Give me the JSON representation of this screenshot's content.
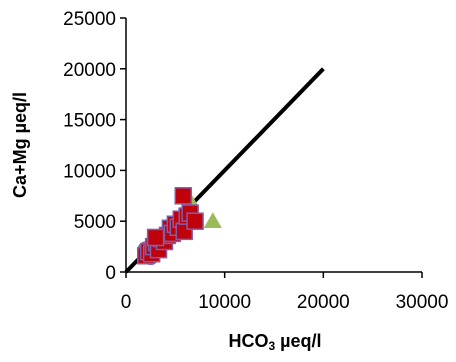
{
  "chart_data": {
    "type": "scatter",
    "title": "",
    "xlabel": "HCO3 µeq/l",
    "ylabel": "Ca+Mg µeq/l",
    "xlabel_parts": {
      "main": "HCO",
      "sub": "3",
      "tail": " µeq/l"
    },
    "xlim": [
      0,
      30000
    ],
    "ylim": [
      0,
      25000
    ],
    "xticks": [
      0,
      10000,
      20000,
      30000
    ],
    "yticks": [
      0,
      5000,
      10000,
      15000,
      20000,
      25000
    ],
    "grid": false,
    "legend": "none",
    "reference_line": {
      "x": [
        0,
        20000
      ],
      "y": [
        0,
        20000
      ],
      "color": "#000000"
    },
    "series": [
      {
        "marker": "circle",
        "color": "#c9722b",
        "points": [
          [
            2200,
            1800
          ],
          [
            2600,
            2100
          ],
          [
            3000,
            2600
          ],
          [
            3400,
            3000
          ],
          [
            2000,
            2200
          ],
          [
            3900,
            3500
          ],
          [
            4300,
            3900
          ],
          [
            2500,
            1500
          ]
        ]
      },
      {
        "marker": "triangle",
        "color": "#9bbb59",
        "points": [
          [
            8800,
            5000
          ],
          [
            6500,
            7000
          ],
          [
            5200,
            4600
          ],
          [
            4600,
            3800
          ]
        ]
      },
      {
        "marker": "square",
        "color": "#c0000b",
        "edge": "#7f5fa8",
        "points": [
          [
            2000,
            1600
          ],
          [
            2300,
            2000
          ],
          [
            2600,
            1800
          ],
          [
            2800,
            2500
          ],
          [
            3100,
            2900
          ],
          [
            3300,
            2200
          ],
          [
            3600,
            3300
          ],
          [
            3900,
            3000
          ],
          [
            4200,
            3600
          ],
          [
            4500,
            4300
          ],
          [
            4700,
            3800
          ],
          [
            5000,
            4700
          ],
          [
            5300,
            4400
          ],
          [
            5600,
            5200
          ],
          [
            5800,
            7500
          ],
          [
            5900,
            4000
          ],
          [
            6200,
            5500
          ],
          [
            6500,
            5800
          ],
          [
            7000,
            5000
          ],
          [
            3000,
            3400
          ]
        ]
      }
    ]
  }
}
